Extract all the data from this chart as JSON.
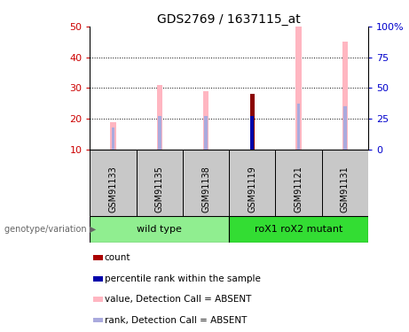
{
  "title": "GDS2769 / 1637115_at",
  "samples": [
    "GSM91133",
    "GSM91135",
    "GSM91138",
    "GSM91119",
    "GSM91121",
    "GSM91131"
  ],
  "pink_bar_values": [
    19,
    31,
    29,
    0,
    50,
    45
  ],
  "blue_bar_values": [
    17,
    21,
    21,
    21,
    25,
    24
  ],
  "dark_red_bar_values": [
    0,
    0,
    0,
    28,
    0,
    0
  ],
  "ylim_left": [
    10,
    50
  ],
  "ylim_right": [
    0,
    100
  ],
  "yticks_left": [
    10,
    20,
    30,
    40,
    50
  ],
  "yticks_right": [
    0,
    25,
    50,
    75,
    100
  ],
  "ytick_labels_right": [
    "0",
    "25",
    "50",
    "75",
    "100%"
  ],
  "left_tick_color": "#CC0000",
  "right_tick_color": "#0000CC",
  "bg_color": "#FFFFFF",
  "pink_color": "#FFB6C1",
  "blue_color": "#AAAADD",
  "dark_red_color": "#8B0000",
  "dark_blue_color": "#0000AA",
  "group_wild_color": "#90EE90",
  "group_mutant_color": "#33DD33",
  "sample_box_color": "#C8C8C8",
  "legend_items": [
    {
      "color": "#AA0000",
      "label": "count"
    },
    {
      "color": "#0000AA",
      "label": "percentile rank within the sample"
    },
    {
      "color": "#FFB6C1",
      "label": "value, Detection Call = ABSENT"
    },
    {
      "color": "#AAAADD",
      "label": "rank, Detection Call = ABSENT"
    }
  ],
  "figsize": [
    4.61,
    3.75
  ],
  "dpi": 100
}
